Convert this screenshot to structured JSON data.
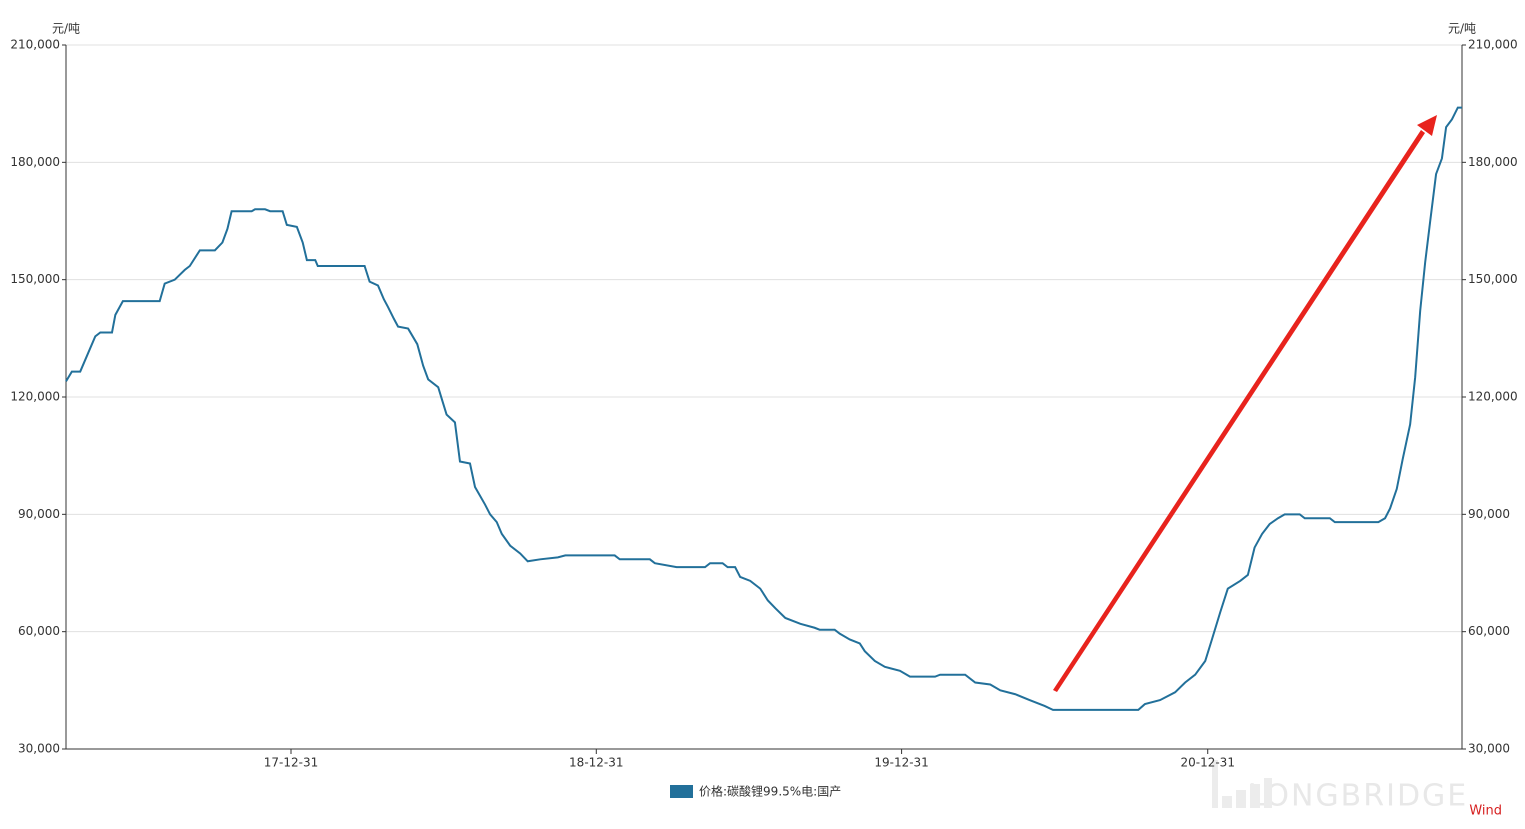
{
  "chart_data": {
    "type": "line",
    "y_unit": "元/吨",
    "y2_unit": "元/吨",
    "source": "Wind",
    "watermark": "LONGBRIDGE",
    "grid": true,
    "x": [
      "2017-04-06",
      "2017-04-13",
      "2017-04-23",
      "2017-05-11",
      "2017-05-17",
      "2017-05-31",
      "2017-06-04",
      "2017-06-13",
      "2017-07-27",
      "2017-08-02",
      "2017-08-14",
      "2017-08-26",
      "2017-09-01",
      "2017-09-13",
      "2017-10-01",
      "2017-10-10",
      "2017-10-16",
      "2017-10-21",
      "2017-11-14",
      "2017-11-18",
      "2017-11-30",
      "2017-12-06",
      "2017-12-21",
      "2017-12-26",
      "2018-01-07",
      "2018-01-14",
      "2018-01-19",
      "2018-01-29",
      "2018-02-01",
      "2018-03-29",
      "2018-04-04",
      "2018-04-14",
      "2018-04-21",
      "2018-04-26",
      "2018-05-03",
      "2018-05-08",
      "2018-05-20",
      "2018-05-31",
      "2018-06-07",
      "2018-06-13",
      "2018-06-25",
      "2018-06-30",
      "2018-07-05",
      "2018-07-15",
      "2018-07-21",
      "2018-08-02",
      "2018-08-08",
      "2018-08-20",
      "2018-08-26",
      "2018-09-03",
      "2018-09-09",
      "2018-09-19",
      "2018-10-01",
      "2018-10-10",
      "2018-10-25",
      "2018-11-15",
      "2018-11-24",
      "2019-01-22",
      "2019-01-28",
      "2019-03-05",
      "2019-03-11",
      "2019-04-06",
      "2019-05-10",
      "2019-05-16",
      "2019-05-31",
      "2019-06-06",
      "2019-06-15",
      "2019-06-21",
      "2019-07-03",
      "2019-07-15",
      "2019-07-24",
      "2019-08-02",
      "2019-08-14",
      "2019-09-01",
      "2019-09-18",
      "2019-09-24",
      "2019-10-12",
      "2019-10-18",
      "2019-10-30",
      "2019-11-11",
      "2019-11-17",
      "2019-11-29",
      "2019-12-11",
      "2019-12-29",
      "2020-01-10",
      "2020-02-09",
      "2020-02-15",
      "2020-03-16",
      "2020-03-28",
      "2020-04-15",
      "2020-04-27",
      "2020-05-15",
      "2020-06-01",
      "2020-06-19",
      "2020-06-29",
      "2020-10-09",
      "2020-10-17",
      "2020-11-04",
      "2020-11-22",
      "2020-12-04",
      "2020-12-16",
      "2020-12-28",
      "2021-01-05",
      "2021-01-15",
      "2021-01-24",
      "2021-02-08",
      "2021-02-17",
      "2021-02-25",
      "2021-03-06",
      "2021-03-15",
      "2021-03-25",
      "2021-04-02",
      "2021-04-20",
      "2021-04-26",
      "2021-05-26",
      "2021-06-01",
      "2021-07-23",
      "2021-07-31",
      "2021-08-06",
      "2021-08-14",
      "2021-08-21",
      "2021-08-30",
      "2021-09-05",
      "2021-09-11",
      "2021-09-17",
      "2021-09-23",
      "2021-09-30",
      "2021-10-07",
      "2021-10-12",
      "2021-10-19",
      "2021-10-26",
      "2021-10-31"
    ],
    "series": [
      {
        "name": "价格:碳酸锂99.5%电:国产",
        "color": "#22709a",
        "values": [
          124000,
          126500,
          126500,
          135500,
          136500,
          136500,
          141000,
          144500,
          144500,
          149000,
          150000,
          152500,
          153500,
          157500,
          157500,
          159500,
          163000,
          167500,
          167500,
          168000,
          168000,
          167500,
          167500,
          164000,
          163500,
          159500,
          155000,
          155000,
          153500,
          153500,
          149500,
          148500,
          145000,
          143000,
          140000,
          138000,
          137500,
          133500,
          128000,
          124500,
          122500,
          119000,
          115500,
          113500,
          103500,
          103000,
          97000,
          92500,
          90000,
          88000,
          85000,
          82000,
          80000,
          78000,
          78500,
          79000,
          79500,
          79500,
          78500,
          78500,
          77500,
          76500,
          76500,
          77500,
          77500,
          76500,
          76500,
          74000,
          73000,
          71000,
          68000,
          66000,
          63500,
          62000,
          61000,
          60500,
          60500,
          59500,
          58000,
          57000,
          55000,
          52500,
          51000,
          50000,
          48500,
          48500,
          49000,
          49000,
          47000,
          46500,
          45000,
          44000,
          42500,
          41000,
          40000,
          40000,
          41500,
          42500,
          44500,
          47000,
          49000,
          52500,
          58000,
          65000,
          71000,
          73000,
          74500,
          81500,
          85000,
          87500,
          89000,
          90000,
          90000,
          89000,
          89000,
          88000,
          88000,
          89000,
          91500,
          96500,
          104000,
          113000,
          125000,
          142000,
          154500,
          165000,
          177000,
          181000,
          189000,
          191000,
          194000,
          194000
        ]
      }
    ],
    "xlim": [
      "2017-04-06",
      "2021-10-31"
    ],
    "xticks": [
      {
        "value": "2017-12-31",
        "label": "17-12-31"
      },
      {
        "value": "2018-12-31",
        "label": "18-12-31"
      },
      {
        "value": "2019-12-31",
        "label": "19-12-31"
      },
      {
        "value": "2020-12-31",
        "label": "20-12-31"
      }
    ],
    "ylim": [
      30000,
      210000
    ],
    "yticks": [
      {
        "value": 30000,
        "label": "30,000"
      },
      {
        "value": 60000,
        "label": "60,000"
      },
      {
        "value": 90000,
        "label": "90,000"
      },
      {
        "value": 120000,
        "label": "120,000"
      },
      {
        "value": 150000,
        "label": "150,000"
      },
      {
        "value": 180000,
        "label": "180,000"
      },
      {
        "value": 210000,
        "label": "210,000"
      }
    ],
    "y2lim": [
      30000,
      210000
    ],
    "y2ticks": [
      {
        "value": 30000,
        "label": "30,000"
      },
      {
        "value": 60000,
        "label": "60,000"
      },
      {
        "value": 90000,
        "label": "90,000"
      },
      {
        "value": 120000,
        "label": "120,000"
      },
      {
        "value": 150000,
        "label": "150,000"
      },
      {
        "value": 180000,
        "label": "180,000"
      },
      {
        "value": 210000,
        "label": "210,000"
      }
    ]
  }
}
